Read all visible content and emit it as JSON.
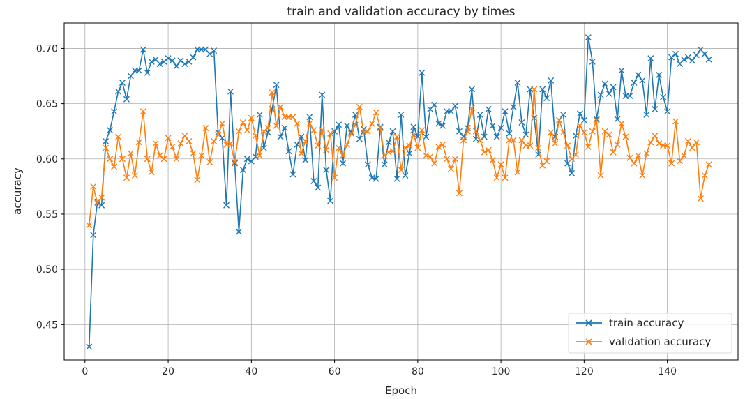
{
  "chart_data": {
    "type": "line",
    "title": "train and validation accuracy by times",
    "xlabel": "Epoch",
    "ylabel": "accuracy",
    "xlim": [
      -5,
      157
    ],
    "ylim": [
      0.418,
      0.723
    ],
    "xticks": [
      0,
      20,
      40,
      60,
      80,
      100,
      120,
      140
    ],
    "yticks": [
      0.45,
      0.5,
      0.55,
      0.6,
      0.65,
      0.7
    ],
    "ytick_labels": [
      "0.45",
      "0.50",
      "0.55",
      "0.60",
      "0.65",
      "0.70"
    ],
    "grid": true,
    "legend_position": "lower-right",
    "series": [
      {
        "name": "train accuracy",
        "color": "#1f77b4",
        "marker": "x",
        "x": [
          1,
          2,
          3,
          4,
          5,
          6,
          7,
          8,
          9,
          10,
          11,
          12,
          13,
          14,
          15,
          16,
          17,
          18,
          19,
          20,
          21,
          22,
          23,
          24,
          25,
          26,
          27,
          28,
          29,
          30,
          31,
          32,
          33,
          34,
          35,
          36,
          37,
          38,
          39,
          40,
          41,
          42,
          43,
          44,
          45,
          46,
          47,
          48,
          49,
          50,
          51,
          52,
          53,
          54,
          55,
          56,
          57,
          58,
          59,
          60,
          61,
          62,
          63,
          64,
          65,
          66,
          67,
          68,
          69,
          70,
          71,
          72,
          73,
          74,
          75,
          76,
          77,
          78,
          79,
          80,
          81,
          82,
          83,
          84,
          85,
          86,
          87,
          88,
          89,
          90,
          91,
          92,
          93,
          94,
          95,
          96,
          97,
          98,
          99,
          100,
          101,
          102,
          103,
          104,
          105,
          106,
          107,
          108,
          109,
          110,
          111,
          112,
          113,
          114,
          115,
          116,
          117,
          118,
          119,
          120,
          121,
          122,
          123,
          124,
          125,
          126,
          127,
          128,
          129,
          130,
          131,
          132,
          133,
          134,
          135,
          136,
          137,
          138,
          139,
          140,
          141,
          142,
          143,
          144,
          145,
          146,
          147,
          148,
          149,
          150
        ],
        "values": [
          0.43,
          0.531,
          0.561,
          0.558,
          0.616,
          0.626,
          0.643,
          0.661,
          0.669,
          0.654,
          0.675,
          0.68,
          0.68,
          0.699,
          0.678,
          0.688,
          0.69,
          0.686,
          0.688,
          0.691,
          0.689,
          0.684,
          0.689,
          0.686,
          0.688,
          0.692,
          0.699,
          0.699,
          0.699,
          0.695,
          0.698,
          0.624,
          0.619,
          0.558,
          0.661,
          0.596,
          0.534,
          0.59,
          0.6,
          0.598,
          0.602,
          0.64,
          0.61,
          0.624,
          0.645,
          0.667,
          0.62,
          0.628,
          0.607,
          0.586,
          0.613,
          0.62,
          0.599,
          0.638,
          0.58,
          0.574,
          0.658,
          0.59,
          0.562,
          0.625,
          0.631,
          0.596,
          0.63,
          0.624,
          0.64,
          0.618,
          0.627,
          0.595,
          0.583,
          0.582,
          0.629,
          0.595,
          0.615,
          0.625,
          0.582,
          0.64,
          0.585,
          0.605,
          0.629,
          0.62,
          0.678,
          0.62,
          0.645,
          0.649,
          0.632,
          0.63,
          0.643,
          0.643,
          0.648,
          0.625,
          0.62,
          0.628,
          0.663,
          0.618,
          0.64,
          0.62,
          0.645,
          0.63,
          0.62,
          0.628,
          0.643,
          0.623,
          0.647,
          0.669,
          0.633,
          0.622,
          0.663,
          0.637,
          0.604,
          0.663,
          0.655,
          0.671,
          0.62,
          0.635,
          0.64,
          0.596,
          0.587,
          0.621,
          0.641,
          0.635,
          0.71,
          0.688,
          0.636,
          0.658,
          0.668,
          0.659,
          0.665,
          0.636,
          0.68,
          0.657,
          0.657,
          0.669,
          0.676,
          0.671,
          0.64,
          0.691,
          0.645,
          0.676,
          0.656,
          0.643,
          0.692,
          0.695,
          0.686,
          0.69,
          0.692,
          0.689,
          0.694,
          0.699,
          0.695,
          0.69
        ]
      },
      {
        "name": "validation accuracy",
        "color": "#ff7f0e",
        "marker": "x",
        "x": [
          1,
          2,
          3,
          4,
          5,
          6,
          7,
          8,
          9,
          10,
          11,
          12,
          13,
          14,
          15,
          16,
          17,
          18,
          19,
          20,
          21,
          22,
          23,
          24,
          25,
          26,
          27,
          28,
          29,
          30,
          31,
          32,
          33,
          34,
          35,
          36,
          37,
          38,
          39,
          40,
          41,
          42,
          43,
          44,
          45,
          46,
          47,
          48,
          49,
          50,
          51,
          52,
          53,
          54,
          55,
          56,
          57,
          58,
          59,
          60,
          61,
          62,
          63,
          64,
          65,
          66,
          67,
          68,
          69,
          70,
          71,
          72,
          73,
          74,
          75,
          76,
          77,
          78,
          79,
          80,
          81,
          82,
          83,
          84,
          85,
          86,
          87,
          88,
          89,
          90,
          91,
          92,
          93,
          94,
          95,
          96,
          97,
          98,
          99,
          100,
          101,
          102,
          103,
          104,
          105,
          106,
          107,
          108,
          109,
          110,
          111,
          112,
          113,
          114,
          115,
          116,
          117,
          118,
          119,
          120,
          121,
          122,
          123,
          124,
          125,
          126,
          127,
          128,
          129,
          130,
          131,
          132,
          133,
          134,
          135,
          136,
          137,
          138,
          139,
          140,
          141,
          142,
          143,
          144,
          145,
          146,
          147,
          148,
          149,
          150
        ],
        "values": [
          0.54,
          0.575,
          0.56,
          0.565,
          0.61,
          0.6,
          0.593,
          0.62,
          0.6,
          0.583,
          0.605,
          0.585,
          0.615,
          0.643,
          0.6,
          0.588,
          0.614,
          0.603,
          0.6,
          0.619,
          0.611,
          0.6,
          0.614,
          0.621,
          0.616,
          0.605,
          0.581,
          0.603,
          0.628,
          0.597,
          0.616,
          0.622,
          0.632,
          0.613,
          0.614,
          0.597,
          0.625,
          0.633,
          0.626,
          0.637,
          0.621,
          0.603,
          0.625,
          0.628,
          0.66,
          0.63,
          0.647,
          0.638,
          0.638,
          0.638,
          0.632,
          0.605,
          0.616,
          0.632,
          0.626,
          0.612,
          0.626,
          0.608,
          0.623,
          0.583,
          0.61,
          0.603,
          0.613,
          0.623,
          0.631,
          0.647,
          0.624,
          0.625,
          0.632,
          0.642,
          0.628,
          0.603,
          0.606,
          0.607,
          0.62,
          0.59,
          0.61,
          0.612,
          0.622,
          0.61,
          0.626,
          0.603,
          0.602,
          0.596,
          0.611,
          0.613,
          0.6,
          0.591,
          0.6,
          0.569,
          0.617,
          0.625,
          0.646,
          0.625,
          0.617,
          0.606,
          0.608,
          0.599,
          0.583,
          0.595,
          0.583,
          0.617,
          0.617,
          0.588,
          0.617,
          0.612,
          0.612,
          0.663,
          0.61,
          0.594,
          0.598,
          0.624,
          0.614,
          0.635,
          0.624,
          0.612,
          0.6,
          0.604,
          0.63,
          0.624,
          0.611,
          0.625,
          0.635,
          0.585,
          0.625,
          0.622,
          0.606,
          0.613,
          0.632,
          0.62,
          0.601,
          0.596,
          0.603,
          0.585,
          0.605,
          0.615,
          0.621,
          0.614,
          0.612,
          0.612,
          0.596,
          0.634,
          0.598,
          0.603,
          0.616,
          0.61,
          0.615,
          0.564,
          0.585,
          0.595
        ]
      }
    ]
  }
}
